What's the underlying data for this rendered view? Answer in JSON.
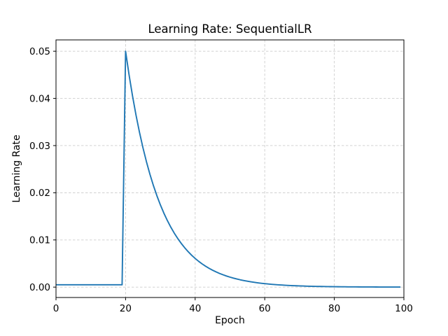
{
  "figure": {
    "background": "#ffffff"
  },
  "chart_data": {
    "type": "line",
    "title": "Learning Rate: SequentialLR",
    "xlabel": "Epoch",
    "ylabel": "Learning Rate",
    "xlim": [
      0,
      100
    ],
    "ylim": [
      -0.0022,
      0.0524
    ],
    "grid": true,
    "grid_style": "dashed",
    "legend": "none",
    "line_color": "#1f77b4",
    "line_width": 1.9,
    "x_ticks": [
      0,
      20,
      40,
      60,
      80,
      100
    ],
    "x_tick_labels": [
      "0",
      "20",
      "40",
      "60",
      "80",
      "100"
    ],
    "y_ticks": [
      0.0,
      0.01,
      0.02,
      0.03,
      0.04,
      0.05
    ],
    "y_tick_labels": [
      "0.00",
      "0.01",
      "0.02",
      "0.03",
      "0.04",
      "0.05"
    ],
    "series": [
      {
        "name": "learning_rate",
        "x": [
          0,
          1,
          2,
          3,
          4,
          5,
          6,
          7,
          8,
          9,
          10,
          11,
          12,
          13,
          14,
          15,
          16,
          17,
          18,
          19,
          20,
          21,
          22,
          23,
          24,
          25,
          26,
          27,
          28,
          29,
          30,
          31,
          32,
          33,
          34,
          35,
          36,
          37,
          38,
          39,
          40,
          41,
          42,
          43,
          44,
          45,
          46,
          47,
          48,
          49,
          50,
          51,
          52,
          53,
          54,
          55,
          56,
          57,
          58,
          59,
          60,
          61,
          62,
          63,
          64,
          65,
          66,
          67,
          68,
          69,
          70,
          71,
          72,
          73,
          74,
          75,
          76,
          77,
          78,
          79,
          80,
          81,
          82,
          83,
          84,
          85,
          86,
          87,
          88,
          89,
          90,
          91,
          92,
          93,
          94,
          95,
          96,
          97,
          98,
          99
        ],
        "y": [
          0.0005,
          0.0005,
          0.0005,
          0.0005,
          0.0005,
          0.0005,
          0.0005,
          0.0005,
          0.0005,
          0.0005,
          0.0005,
          0.0005,
          0.0005,
          0.0005,
          0.0005,
          0.0005,
          0.0005,
          0.0005,
          0.0005,
          0.0005,
          0.05,
          0.045,
          0.0405,
          0.03645,
          0.032805,
          0.0295245,
          0.0265721,
          0.0239148,
          0.0215234,
          0.019371,
          0.0174339,
          0.0156905,
          0.0141215,
          0.0127093,
          0.0114384,
          0.0102946,
          0.0092651,
          0.0083386,
          0.0075047,
          0.0067543,
          0.0060788,
          0.0054709,
          0.0049239,
          0.0044315,
          0.0039883,
          0.0035895,
          0.0032305,
          0.0029075,
          0.0026167,
          0.0023551,
          0.0021196,
          0.0019076,
          0.0017168,
          0.0015452,
          0.0013906,
          0.0012516,
          0.0011264,
          0.0010138,
          0.0009124,
          0.0008212,
          0.000739,
          0.0006651,
          0.0005986,
          0.0005388,
          0.0004849,
          0.0004364,
          0.0003928,
          0.0003535,
          0.0003181,
          0.0002863,
          0.0002577,
          0.0002319,
          0.0002087,
          0.0001879,
          0.0001691,
          0.0001522,
          0.0001369,
          0.0001233,
          0.0001109,
          9.98e-05,
          8.99e-05,
          8.09e-05,
          7.28e-05,
          6.55e-05,
          5.9e-05,
          5.31e-05,
          4.78e-05,
          4.3e-05,
          3.87e-05,
          3.48e-05,
          3.13e-05,
          2.82e-05,
          2.54e-05,
          2.28e-05,
          2.06e-05,
          1.85e-05,
          1.66e-05,
          1.5e-05,
          1.35e-05,
          1.21e-05
        ]
      }
    ]
  }
}
